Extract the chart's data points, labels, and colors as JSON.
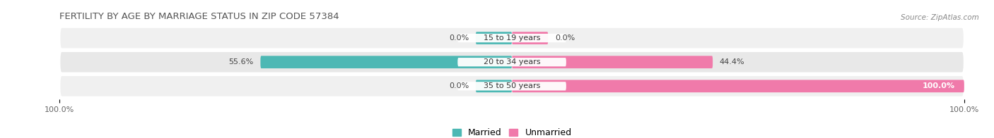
{
  "title": "FERTILITY BY AGE BY MARRIAGE STATUS IN ZIP CODE 57384",
  "source": "Source: ZipAtlas.com",
  "categories": [
    "15 to 19 years",
    "20 to 34 years",
    "35 to 50 years"
  ],
  "married": [
    0.0,
    55.6,
    0.0
  ],
  "unmarried": [
    0.0,
    44.4,
    100.0
  ],
  "married_color": "#4db8b4",
  "unmarried_color": "#f07aaa",
  "row_bg_even": "#f0f0f0",
  "row_bg_odd": "#e8e8e8",
  "xlim": 100.0,
  "bar_height": 0.52,
  "stub_size": 8.0,
  "title_fontsize": 9.5,
  "label_fontsize": 8.0,
  "tick_fontsize": 8.0,
  "legend_fontsize": 9.0,
  "center_label_bg": "#ffffff"
}
